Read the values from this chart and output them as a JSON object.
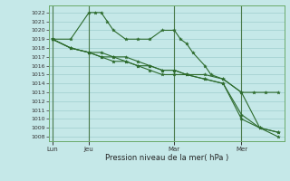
{
  "xlabel": "Pression niveau de la mer( hPa )",
  "bg_color": "#c5e8e8",
  "grid_color": "#9fcece",
  "line_color": "#2d6b2d",
  "vline_color": "#4a7a4a",
  "ylim": [
    1007.5,
    1022.8
  ],
  "ytick_min": 1008,
  "ytick_max": 1022,
  "xtick_labels": [
    "Lun",
    "Jeu",
    "Mar",
    "Mer"
  ],
  "xtick_positions": [
    0,
    6,
    20,
    31
  ],
  "xmin": -0.5,
  "xmax": 38,
  "series": [
    {
      "x": [
        0,
        3,
        6,
        7,
        8,
        9,
        10,
        12,
        14,
        16,
        18,
        20,
        21,
        22,
        23,
        25,
        26,
        28,
        31,
        34,
        37
      ],
      "y": [
        1019,
        1019,
        1022,
        1022,
        1022,
        1021,
        1020,
        1019,
        1019,
        1019,
        1020,
        1020,
        1019,
        1018.5,
        1017.5,
        1016,
        1015,
        1014.5,
        1013,
        1009,
        1008.5
      ]
    },
    {
      "x": [
        0,
        3,
        6,
        8,
        10,
        12,
        14,
        16,
        18,
        20,
        22,
        25,
        28,
        31,
        34,
        37
      ],
      "y": [
        1019,
        1018,
        1017.5,
        1017,
        1017,
        1016.5,
        1016,
        1016,
        1015.5,
        1015.5,
        1015,
        1014.5,
        1014,
        1010,
        1009,
        1008
      ]
    },
    {
      "x": [
        0,
        3,
        6,
        8,
        10,
        12,
        14,
        16,
        18,
        20,
        22,
        25,
        28,
        31,
        34,
        37
      ],
      "y": [
        1019,
        1018,
        1017.5,
        1017,
        1016.5,
        1016.5,
        1016,
        1015.5,
        1015,
        1015,
        1015,
        1014.5,
        1014,
        1010.5,
        1009,
        1008.5
      ]
    },
    {
      "x": [
        0,
        3,
        6,
        8,
        10,
        12,
        14,
        16,
        18,
        20,
        22,
        25,
        28,
        31,
        33,
        35,
        37
      ],
      "y": [
        1019,
        1018,
        1017.5,
        1017.5,
        1017,
        1017,
        1016.5,
        1016,
        1015.5,
        1015.5,
        1015,
        1015,
        1014.5,
        1013,
        1013,
        1013,
        1013
      ]
    }
  ]
}
